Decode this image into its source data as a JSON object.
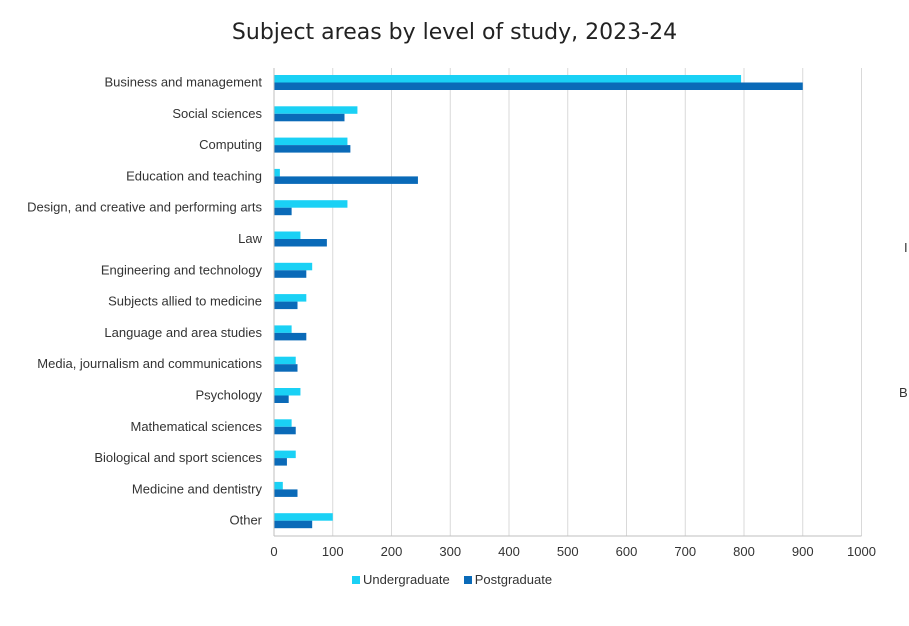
{
  "chart_data": {
    "type": "bar",
    "orientation": "horizontal",
    "title": "Subject areas by level of study, 2023-24",
    "categories": [
      "Business and management",
      "Social sciences",
      "Computing",
      "Education and teaching",
      "Design, and creative and performing arts",
      "Law",
      "Engineering and technology",
      "Subjects allied to medicine",
      "Language and area studies",
      "Media, journalism and communications",
      "Psychology",
      "Mathematical sciences",
      "Biological and sport sciences",
      "Medicine and dentistry",
      "Other"
    ],
    "series": [
      {
        "name": "Undergraduate",
        "color": "#1ad1f5",
        "values": [
          795,
          142,
          125,
          10,
          125,
          45,
          65,
          55,
          30,
          37,
          45,
          30,
          37,
          15,
          100
        ]
      },
      {
        "name": "Postgraduate",
        "color": "#0a6ab8",
        "values": [
          900,
          120,
          130,
          245,
          30,
          90,
          55,
          40,
          55,
          40,
          25,
          37,
          22,
          40,
          65
        ]
      }
    ],
    "xlim": [
      0,
      1000
    ],
    "xticks": [
      0,
      100,
      200,
      300,
      400,
      500,
      600,
      700,
      800,
      900,
      1000
    ],
    "grid": true,
    "legend": "bottom-center"
  },
  "edge_fragments": [
    "I",
    "B"
  ]
}
